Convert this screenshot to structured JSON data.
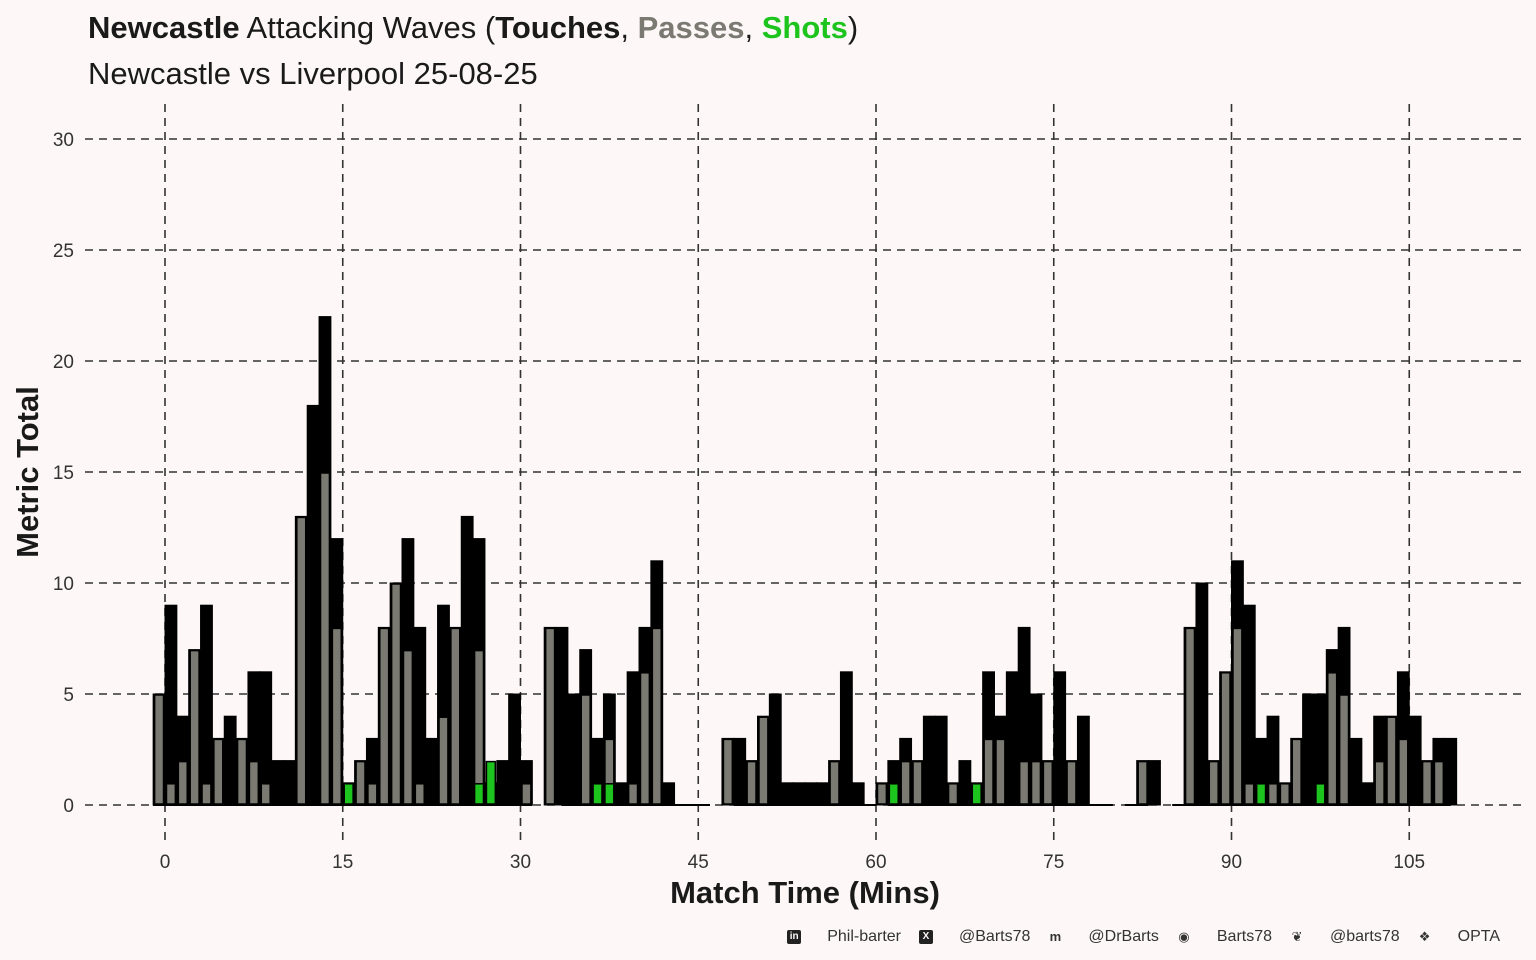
{
  "title": {
    "team": "Newcastle",
    "middle": " Attacking Waves (",
    "touches": "Touches",
    "sep1": ", ",
    "passes": "Passes",
    "sep2": ", ",
    "shots": "Shots",
    "end": ")"
  },
  "subtitle": "Newcastle vs Liverpool 25-08-25",
  "colors": {
    "background": "#fdf8f7",
    "touches": "#000000",
    "passes": "#7a7a72",
    "shots": "#1ec41e",
    "grid": "#333333"
  },
  "chart_data": {
    "type": "bar",
    "xlabel": "Match Time (Mins)",
    "ylabel": "Metric Total",
    "xlim": [
      -4,
      111
    ],
    "ylim": [
      0,
      30
    ],
    "x_ticks": [
      0,
      15,
      30,
      45,
      60,
      75,
      90,
      105
    ],
    "y_ticks": [
      0,
      5,
      10,
      15,
      20,
      25,
      30
    ],
    "grid": "dashed",
    "minutes": [
      -0.5,
      0.5,
      1.5,
      2.5,
      3.5,
      4.5,
      5.5,
      6.5,
      7.5,
      8.5,
      9.5,
      10.5,
      11.5,
      12.5,
      13.5,
      14.5,
      15.5,
      16.5,
      17.5,
      18.5,
      19.5,
      20.5,
      21.5,
      22.5,
      23.5,
      24.5,
      25.5,
      26.5,
      27.5,
      28.5,
      29.5,
      30.5,
      31.5,
      32.5,
      33.5,
      34.5,
      35.5,
      36.5,
      37.5,
      38.5,
      39.5,
      40.5,
      41.5,
      42.5,
      43.5,
      44.5,
      45.5,
      46.5,
      47.5,
      48.5,
      49.5,
      50.5,
      51.5,
      52.5,
      53.5,
      54.5,
      55.5,
      56.5,
      57.5,
      58.5,
      59.5,
      60.5,
      61.5,
      62.5,
      63.5,
      64.5,
      65.5,
      66.5,
      67.5,
      68.5,
      69.5,
      70.5,
      71.5,
      72.5,
      73.5,
      74.5,
      75.5,
      76.5,
      77.5,
      78.5,
      79.5,
      80.5,
      81.5,
      82.5,
      83.5,
      84.5,
      85.5,
      86.5,
      87.5,
      88.5,
      89.5,
      90.5,
      91.5,
      92.5,
      93.5,
      94.5,
      95.5,
      96.5,
      97.5,
      98.5,
      99.5,
      100.5,
      101.5,
      102.5,
      103.5,
      104.5,
      105.5,
      106.5,
      107.5,
      108.5
    ],
    "series": [
      {
        "name": "Touches",
        "values": [
          5,
          9,
          4,
          7,
          9,
          3,
          4,
          3,
          6,
          6,
          2,
          2,
          13,
          18,
          22,
          12,
          1,
          2,
          3,
          8,
          10,
          12,
          8,
          3,
          9,
          8,
          13,
          12,
          1,
          2,
          5,
          2,
          0,
          8,
          8,
          5,
          7,
          3,
          5,
          1,
          6,
          8,
          11,
          1,
          0,
          0,
          0,
          0,
          3,
          3,
          2,
          4,
          5,
          1,
          1,
          1,
          1,
          2,
          6,
          1,
          0,
          1,
          2,
          3,
          2,
          4,
          4,
          1,
          2,
          1,
          6,
          4,
          6,
          8,
          5,
          2,
          6,
          2,
          4,
          0,
          0,
          0,
          0,
          2,
          2,
          0,
          0,
          8,
          10,
          2,
          6,
          11,
          9,
          3,
          4,
          1,
          3,
          5,
          5,
          7,
          8,
          3,
          1,
          4,
          4,
          6,
          4,
          2,
          3,
          3
        ]
      },
      {
        "name": "Passes",
        "values": [
          5,
          1,
          2,
          7,
          1,
          3,
          0,
          3,
          2,
          1,
          0,
          0,
          13,
          0,
          15,
          8,
          1,
          2,
          1,
          8,
          10,
          7,
          1,
          0,
          4,
          8,
          0,
          7,
          0,
          0,
          0,
          1,
          0,
          8,
          0,
          0,
          5,
          0,
          3,
          0,
          1,
          6,
          8,
          0,
          0,
          0,
          0,
          0,
          3,
          0,
          2,
          4,
          0,
          0,
          0,
          0,
          0,
          2,
          0,
          0,
          0,
          1,
          0,
          2,
          2,
          0,
          0,
          1,
          0,
          1,
          3,
          3,
          0,
          2,
          2,
          2,
          0,
          2,
          0,
          0,
          0,
          0,
          0,
          2,
          0,
          0,
          0,
          8,
          0,
          2,
          6,
          8,
          1,
          1,
          1,
          1,
          3,
          0,
          0,
          6,
          5,
          0,
          0,
          2,
          4,
          3,
          0,
          2,
          2,
          0
        ]
      },
      {
        "name": "Shots",
        "values": [
          0,
          0,
          0,
          0,
          0,
          0,
          0,
          0,
          0,
          0,
          0,
          0,
          0,
          0,
          0,
          0,
          1,
          0,
          0,
          0,
          0,
          0,
          0,
          0,
          0,
          0,
          0,
          1,
          2,
          0,
          0,
          0,
          0,
          0,
          0,
          0,
          0,
          1,
          1,
          0,
          0,
          0,
          0,
          0,
          0,
          0,
          0,
          0,
          0,
          0,
          0,
          0,
          0,
          0,
          0,
          0,
          0,
          0,
          0,
          0,
          0,
          0,
          1,
          0,
          0,
          0,
          0,
          0,
          0,
          1,
          0,
          0,
          0,
          0,
          0,
          0,
          0,
          0,
          0,
          0,
          0,
          0,
          0,
          0,
          0,
          0,
          0,
          0,
          0,
          0,
          0,
          0,
          0,
          1,
          0,
          0,
          0,
          0,
          1,
          0,
          0,
          0,
          0,
          0,
          0,
          0,
          0,
          0,
          0,
          0
        ]
      }
    ],
    "baseline_gaps": [
      [
        32,
        33.5
      ],
      [
        47,
        48.5
      ],
      [
        61,
        61.5
      ],
      [
        80.5,
        81.5
      ],
      [
        83.5,
        85.5
      ]
    ]
  },
  "footer": {
    "items": [
      {
        "icon": "linkedin-icon",
        "glyph": "in",
        "label": "Phil-barter"
      },
      {
        "icon": "x-icon",
        "glyph": "X",
        "label": "@Barts78"
      },
      {
        "icon": "mastodon-icon",
        "glyph": "m",
        "label": "@DrBarts"
      },
      {
        "icon": "github-icon",
        "glyph": "◉",
        "label": "Barts78"
      },
      {
        "icon": "bluesky-icon",
        "glyph": "❦",
        "label": "@barts78"
      },
      {
        "icon": "dropbox-icon",
        "glyph": "❖",
        "label": "OPTA"
      }
    ]
  }
}
